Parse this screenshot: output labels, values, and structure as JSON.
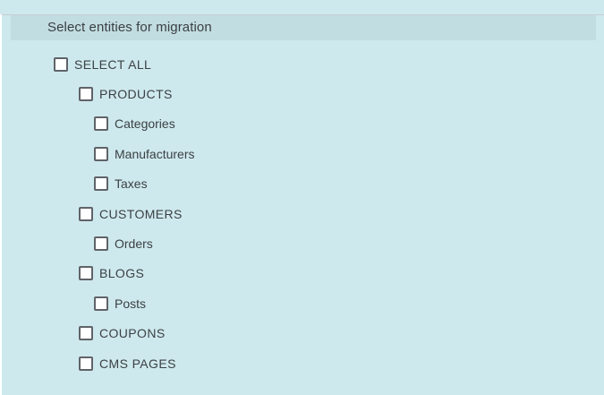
{
  "colors": {
    "page_background": "#cee9ee",
    "header_background": "#c2dde2",
    "text": "#3b4043",
    "checkbox_border": "#5f6368",
    "checkbox_fill": "#ffffff"
  },
  "header": {
    "title": "Select entities for migration"
  },
  "tree": {
    "items": [
      {
        "label": "SELECT ALL",
        "level": 0,
        "checked": false
      },
      {
        "label": "PRODUCTS",
        "level": 1,
        "checked": false
      },
      {
        "label": "Categories",
        "level": 2,
        "checked": false
      },
      {
        "label": "Manufacturers",
        "level": 2,
        "checked": false
      },
      {
        "label": "Taxes",
        "level": 2,
        "checked": false
      },
      {
        "label": "CUSTOMERS",
        "level": 1,
        "checked": false
      },
      {
        "label": "Orders",
        "level": 2,
        "checked": false
      },
      {
        "label": "BLOGS",
        "level": 1,
        "checked": false
      },
      {
        "label": "Posts",
        "level": 2,
        "checked": false
      },
      {
        "label": "COUPONS",
        "level": 1,
        "checked": false
      },
      {
        "label": "CMS PAGES",
        "level": 1,
        "checked": false
      }
    ]
  }
}
